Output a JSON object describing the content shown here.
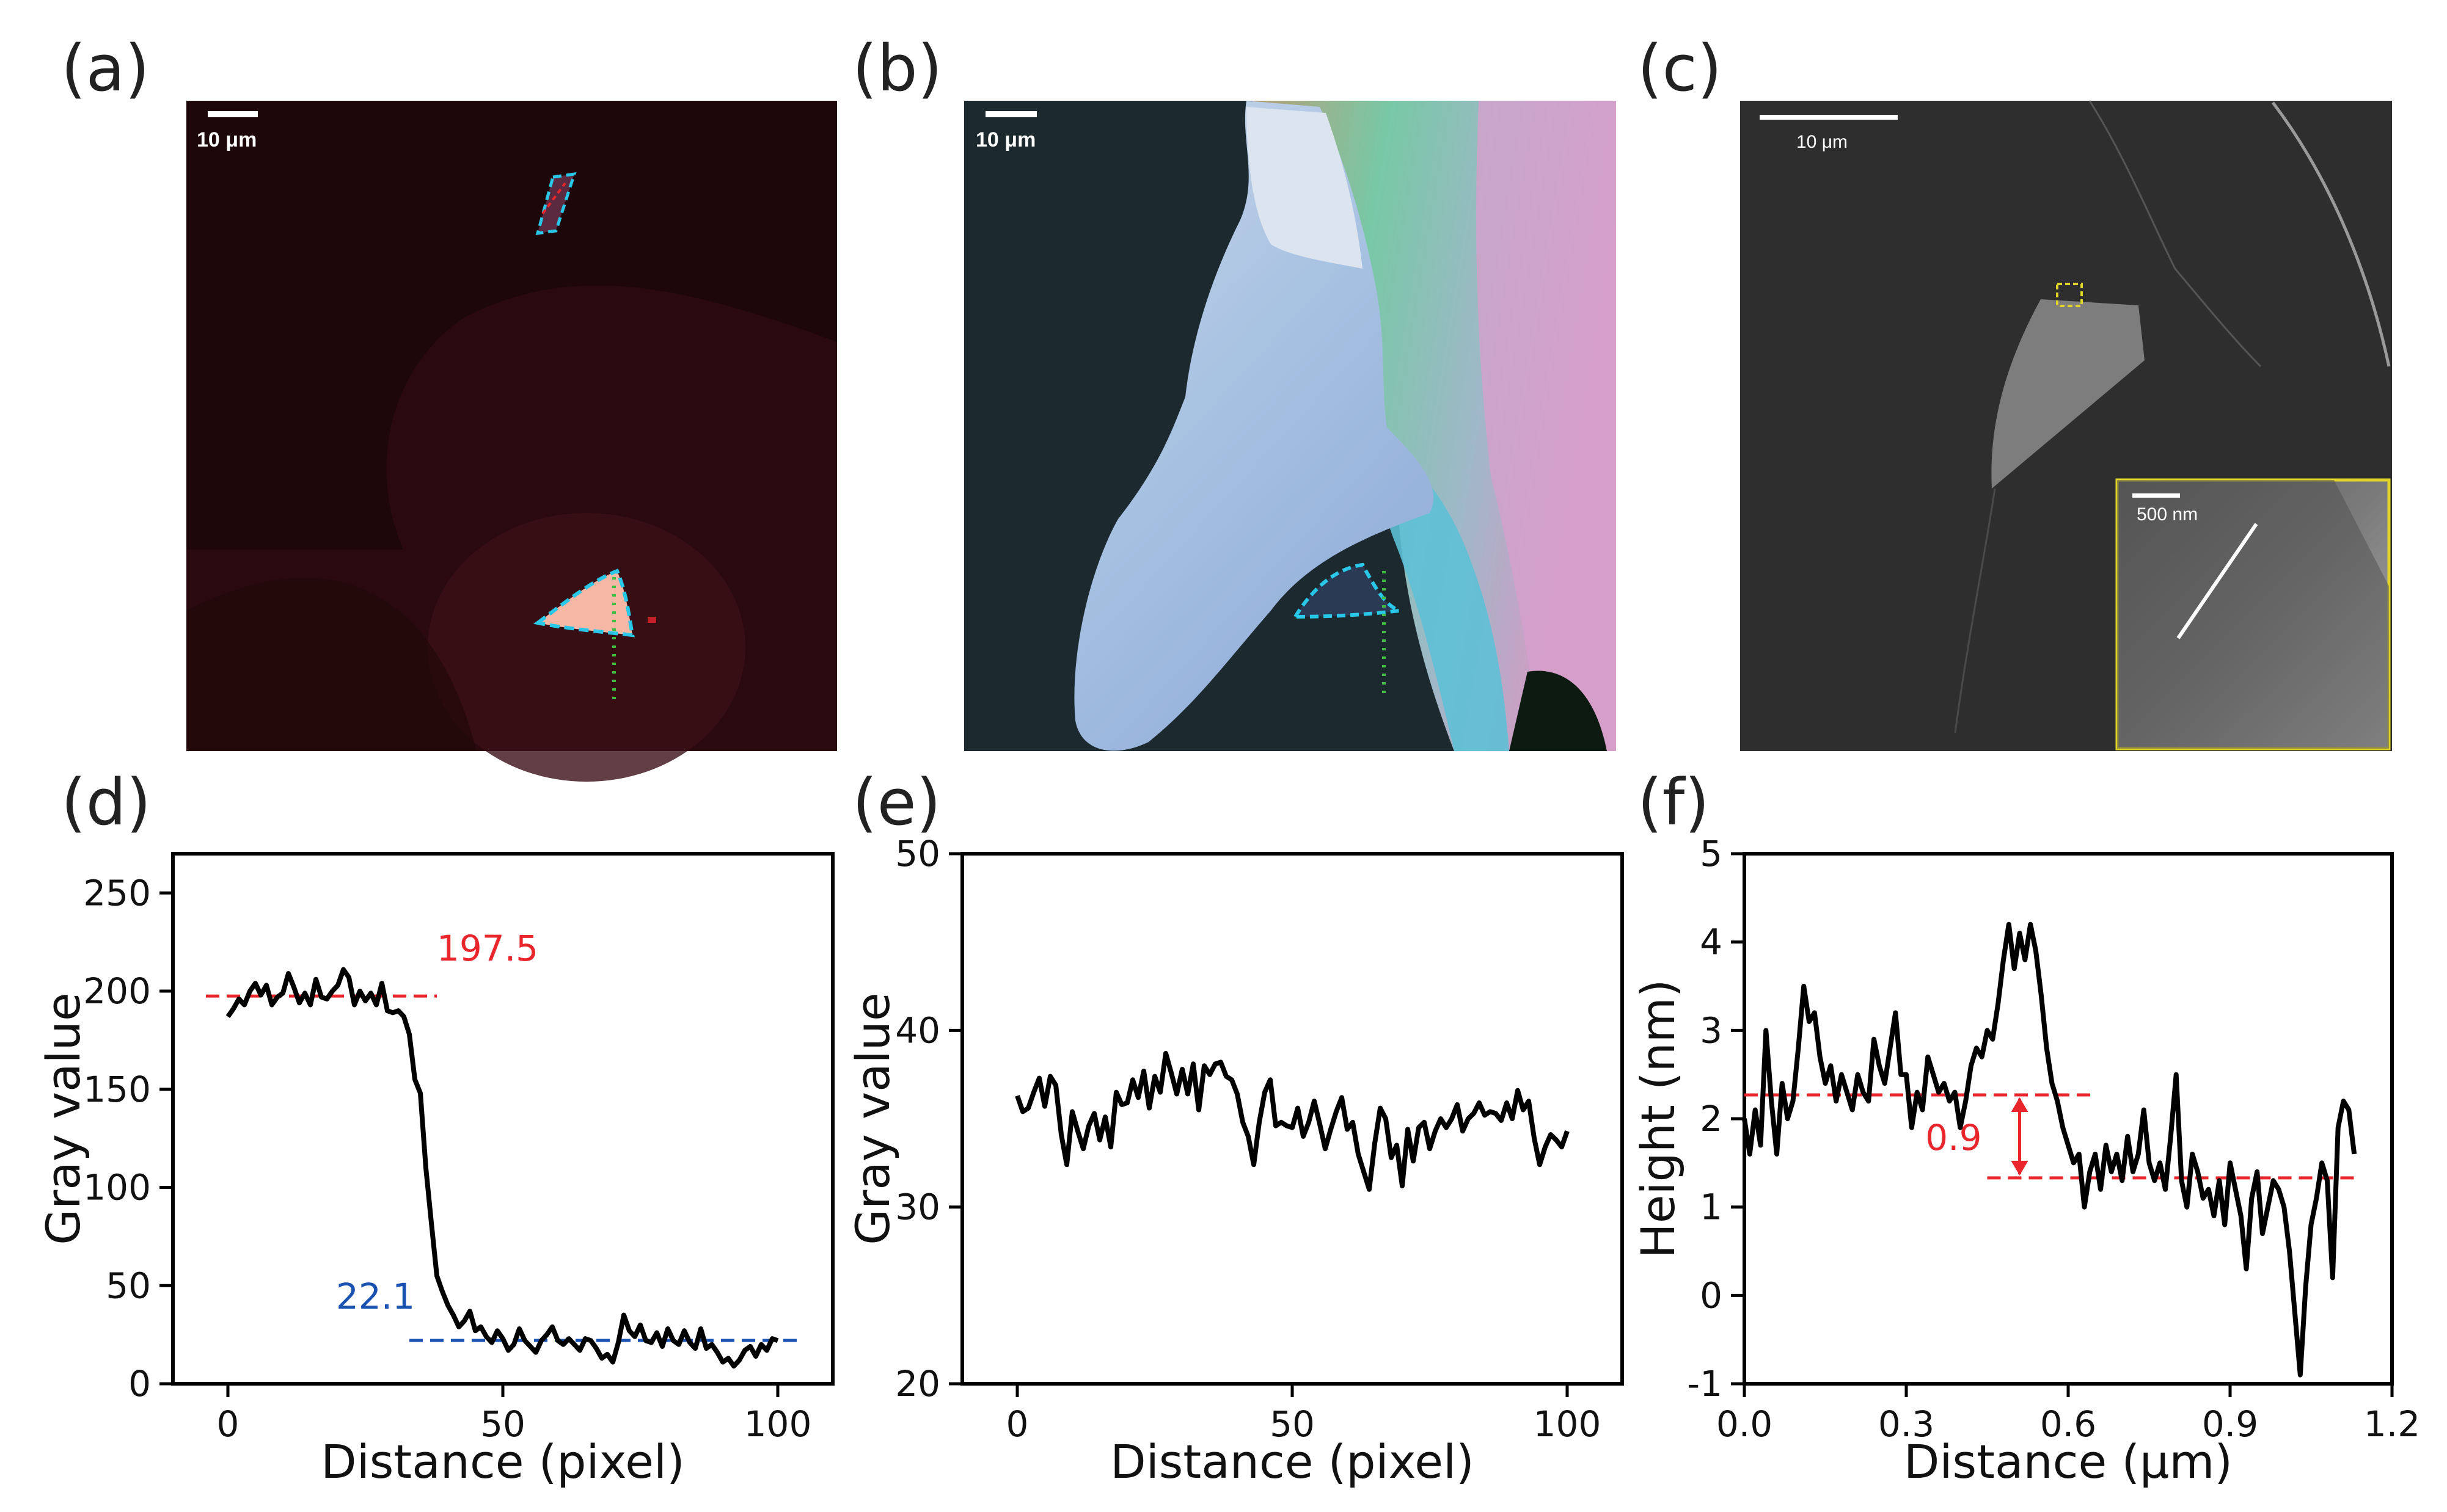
{
  "panels": {
    "a": {
      "label": "(a)",
      "scalebar": "10 μm"
    },
    "b": {
      "label": "(b)",
      "scalebar": "10 μm"
    },
    "c": {
      "label": "(c)",
      "scalebar": "10 μm",
      "inset_scalebar": "500 nm"
    },
    "d": {
      "label": "(d)"
    },
    "e": {
      "label": "(e)"
    },
    "f": {
      "label": "(f)"
    }
  },
  "colors": {
    "red_dash": "#e8262c",
    "blue_dash": "#1a52b2",
    "line": "#000000",
    "inset_border": "#e0d42a",
    "cyan_outline": "#29c8e8",
    "green_dots": "#3fbf3f"
  },
  "chart_data": [
    {
      "id": "d",
      "type": "line",
      "title": "",
      "xlabel": "Distance (pixel)",
      "ylabel": "Gray value",
      "xlim": [
        -10,
        110
      ],
      "ylim": [
        0,
        270
      ],
      "xticks": [
        0,
        50,
        100
      ],
      "yticks": [
        0,
        50,
        100,
        150,
        200,
        250
      ],
      "x": [
        0,
        1,
        2,
        3,
        4,
        5,
        6,
        7,
        8,
        9,
        10,
        11,
        12,
        13,
        14,
        15,
        16,
        17,
        18,
        19,
        20,
        21,
        22,
        23,
        24,
        25,
        26,
        27,
        28,
        29,
        30,
        31,
        32,
        33,
        34,
        35,
        36,
        37,
        38,
        39,
        40,
        41,
        42,
        43,
        44,
        45,
        46,
        47,
        48,
        49,
        50,
        51,
        52,
        53,
        54,
        55,
        56,
        57,
        58,
        59,
        60,
        61,
        62,
        63,
        64,
        65,
        66,
        67,
        68,
        69,
        70,
        71,
        72,
        73,
        74,
        75,
        76,
        77,
        78,
        79,
        80,
        81,
        82,
        83,
        84,
        85,
        86,
        87,
        88,
        89,
        90,
        91,
        92,
        93,
        94,
        95,
        96,
        97,
        98,
        99,
        100
      ],
      "y": [
        187,
        191,
        196,
        193,
        200,
        204,
        198,
        203,
        193,
        197,
        199,
        209,
        202,
        194,
        199,
        193,
        206,
        197,
        196,
        200,
        203,
        211,
        207,
        193,
        200,
        195,
        199,
        193,
        204,
        190,
        189,
        190,
        187,
        178,
        155,
        148,
        110,
        82,
        55,
        47,
        40,
        35,
        29,
        32,
        37,
        27,
        29,
        24,
        21,
        27,
        23,
        17,
        20,
        28,
        22,
        19,
        16,
        22,
        25,
        29,
        22,
        20,
        23,
        20,
        17,
        23,
        22,
        18,
        13,
        15,
        11,
        21,
        35,
        27,
        24,
        30,
        22,
        21,
        26,
        19,
        28,
        22,
        20,
        27,
        21,
        18,
        28,
        18,
        20,
        16,
        11,
        13,
        9,
        12,
        17,
        19,
        14,
        20,
        17,
        23,
        22
      ],
      "annotations": [
        {
          "text": "197.5",
          "y": 197.5,
          "x_from": -4,
          "x_to": 38,
          "color": "#e8262c"
        },
        {
          "text": "22.1",
          "y": 22.1,
          "x_from": 33,
          "x_to": 104,
          "color": "#1a52b2"
        }
      ]
    },
    {
      "id": "e",
      "type": "line",
      "title": "",
      "xlabel": "Distance (pixel)",
      "ylabel": "Gray value",
      "xlim": [
        -10,
        110
      ],
      "ylim": [
        20,
        50
      ],
      "xticks": [
        0,
        50,
        100
      ],
      "yticks": [
        20,
        30,
        40,
        50
      ],
      "x": [
        0,
        1,
        2,
        3,
        4,
        5,
        6,
        7,
        8,
        9,
        10,
        11,
        12,
        13,
        14,
        15,
        16,
        17,
        18,
        19,
        20,
        21,
        22,
        23,
        24,
        25,
        26,
        27,
        28,
        29,
        30,
        31,
        32,
        33,
        34,
        35,
        36,
        37,
        38,
        39,
        40,
        41,
        42,
        43,
        44,
        45,
        46,
        47,
        48,
        49,
        50,
        51,
        52,
        53,
        54,
        55,
        56,
        57,
        58,
        59,
        60,
        61,
        62,
        63,
        64,
        65,
        66,
        67,
        68,
        69,
        70,
        71,
        72,
        73,
        74,
        75,
        76,
        77,
        78,
        79,
        80,
        81,
        82,
        83,
        84,
        85,
        86,
        87,
        88,
        89,
        90,
        91,
        92,
        93,
        94,
        95,
        96,
        97,
        98,
        99,
        100
      ],
      "y": [
        36.3,
        35.4,
        35.6,
        36.5,
        37.3,
        35.7,
        37.4,
        36.9,
        34.1,
        32.4,
        35.4,
        34.3,
        33.3,
        34.6,
        35.3,
        33.8,
        35.1,
        33.4,
        36.5,
        35.8,
        35.9,
        37.2,
        36.2,
        37.7,
        35.6,
        37.4,
        36.5,
        38.7,
        37.6,
        36.4,
        37.8,
        36.4,
        38.1,
        35.5,
        38.0,
        37.5,
        38.1,
        38.2,
        37.4,
        37.2,
        36.4,
        34.8,
        34.0,
        32.4,
        34.8,
        36.5,
        37.2,
        34.6,
        34.8,
        34.6,
        34.5,
        35.6,
        34.0,
        34.8,
        36.0,
        34.7,
        33.3,
        34.4,
        35.4,
        36.2,
        34.4,
        34.8,
        33.0,
        32.0,
        31.0,
        33.6,
        35.6,
        35.0,
        32.8,
        33.5,
        31.2,
        34.4,
        32.6,
        34.5,
        34.8,
        33.3,
        34.3,
        35.0,
        34.5,
        35.0,
        35.8,
        34.3,
        35.0,
        35.3,
        35.9,
        35.2,
        35.4,
        35.3,
        34.9,
        35.9,
        35.0,
        36.6,
        35.5,
        36.0,
        33.9,
        32.4,
        33.4,
        34.1,
        33.8,
        33.4,
        34.3
      ],
      "annotations": []
    },
    {
      "id": "f",
      "type": "line",
      "title": "",
      "xlabel": "Distance (μm)",
      "ylabel": "Height (nm)",
      "xlim": [
        0.0,
        1.2
      ],
      "ylim": [
        -1,
        5
      ],
      "xticks": [
        0.0,
        0.3,
        0.6,
        0.9,
        1.2
      ],
      "xtick_labels": [
        "0.0",
        "0.3",
        "0.6",
        "0.9",
        "1.2"
      ],
      "yticks": [
        -1,
        0,
        1,
        2,
        3,
        4,
        5
      ],
      "x": [
        0.0,
        0.01,
        0.02,
        0.03,
        0.04,
        0.05,
        0.06,
        0.07,
        0.08,
        0.09,
        0.1,
        0.11,
        0.12,
        0.13,
        0.14,
        0.15,
        0.16,
        0.17,
        0.18,
        0.19,
        0.2,
        0.21,
        0.22,
        0.23,
        0.24,
        0.25,
        0.26,
        0.27,
        0.28,
        0.29,
        0.3,
        0.31,
        0.32,
        0.33,
        0.34,
        0.35,
        0.36,
        0.37,
        0.38,
        0.39,
        0.4,
        0.41,
        0.42,
        0.43,
        0.44,
        0.45,
        0.46,
        0.47,
        0.48,
        0.49,
        0.5,
        0.51,
        0.52,
        0.53,
        0.54,
        0.55,
        0.56,
        0.57,
        0.58,
        0.59,
        0.6,
        0.61,
        0.62,
        0.63,
        0.64,
        0.65,
        0.66,
        0.67,
        0.68,
        0.69,
        0.7,
        0.71,
        0.72,
        0.73,
        0.74,
        0.75,
        0.76,
        0.77,
        0.78,
        0.79,
        0.8,
        0.81,
        0.82,
        0.83,
        0.84,
        0.85,
        0.86,
        0.87,
        0.88,
        0.89,
        0.9,
        0.91,
        0.92,
        0.93,
        0.94,
        0.95,
        0.96,
        0.97,
        0.98,
        0.99,
        1.0,
        1.01,
        1.02,
        1.03,
        1.04,
        1.05,
        1.06,
        1.07,
        1.08,
        1.09,
        1.1,
        1.11,
        1.12,
        1.13
      ],
      "y": [
        2.0,
        1.6,
        2.1,
        1.7,
        3.0,
        2.2,
        1.6,
        2.4,
        2.0,
        2.2,
        2.8,
        3.5,
        3.1,
        3.2,
        2.7,
        2.4,
        2.6,
        2.2,
        2.5,
        2.3,
        2.1,
        2.5,
        2.3,
        2.2,
        2.9,
        2.6,
        2.4,
        2.8,
        3.2,
        2.5,
        2.5,
        1.9,
        2.3,
        2.1,
        2.7,
        2.5,
        2.3,
        2.4,
        2.2,
        2.3,
        1.9,
        2.2,
        2.6,
        2.8,
        2.7,
        3.0,
        2.9,
        3.3,
        3.8,
        4.2,
        3.7,
        4.1,
        3.8,
        4.2,
        3.9,
        3.4,
        2.8,
        2.4,
        2.2,
        1.9,
        1.7,
        1.5,
        1.6,
        1.0,
        1.4,
        1.6,
        1.2,
        1.7,
        1.4,
        1.6,
        1.3,
        1.8,
        1.4,
        1.6,
        2.1,
        1.5,
        1.3,
        1.5,
        1.2,
        1.8,
        2.5,
        1.3,
        1.0,
        1.6,
        1.4,
        1.1,
        1.2,
        0.9,
        1.3,
        0.8,
        1.5,
        1.2,
        0.9,
        0.3,
        1.1,
        1.4,
        0.7,
        1.0,
        1.3,
        1.2,
        1.0,
        0.5,
        -0.2,
        -0.9,
        0.1,
        0.8,
        1.1,
        1.5,
        1.3,
        0.2,
        1.9,
        2.2,
        2.1,
        1.6
      ],
      "annotations": [
        {
          "text": "0.9",
          "upper_y": 2.27,
          "lower_y": 1.33,
          "upper_x_from": 0.0,
          "upper_x_to": 0.65,
          "lower_x_from": 0.45,
          "lower_x_to": 1.13,
          "arrow_x": 0.51,
          "color": "#e8262c"
        }
      ]
    }
  ]
}
